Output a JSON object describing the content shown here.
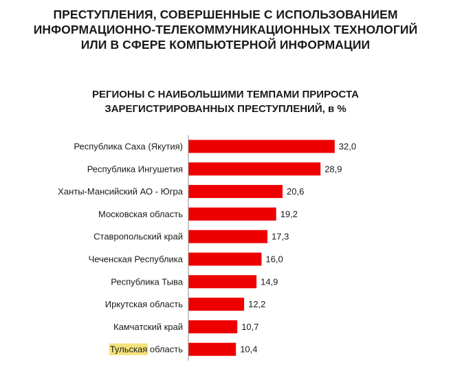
{
  "title_lines": [
    "ПРЕСТУПЛЕНИЯ, СОВЕРШЕННЫЕ С ИСПОЛЬЗОВАНИЕМ",
    "ИНФОРМАЦИОННО-ТЕЛЕКОММУНИКАЦИОННЫХ ТЕХНОЛОГИЙ",
    "ИЛИ В СФЕРЕ КОМПЬЮТЕРНОЙ ИНФОРМАЦИИ"
  ],
  "subtitle_lines": [
    "РЕГИОНЫ С НАИБОЛЬШИМИ ТЕМПАМИ ПРИРОСТА",
    "ЗАРЕГИСТРИРОВАННЫХ ПРЕСТУПЛЕНИЙ, в %"
  ],
  "colors": {
    "bar": "#ee0000",
    "highlight": "#f5e37a"
  },
  "chart_data": {
    "type": "bar",
    "orientation": "horizontal",
    "categories": [
      "Республика Саха (Якутия)",
      "Республика Ингушетия",
      "Ханты-Мансийский АО - Югра",
      "Московская область",
      "Ставропольский край",
      "Чеченская Республика",
      "Республика Тыва",
      "Иркутская область",
      "Камчатский край",
      "Тульская область"
    ],
    "values": [
      32.0,
      28.9,
      20.6,
      19.2,
      17.3,
      16.0,
      14.9,
      12.2,
      10.7,
      10.4
    ],
    "data_labels": [
      "32,0",
      "28,9",
      "20,6",
      "19,2",
      "17,3",
      "16,0",
      "14,9",
      "12,2",
      "10,7",
      "10,4"
    ],
    "highlighted_text": "Тульская",
    "grid": false,
    "legend": "none"
  }
}
